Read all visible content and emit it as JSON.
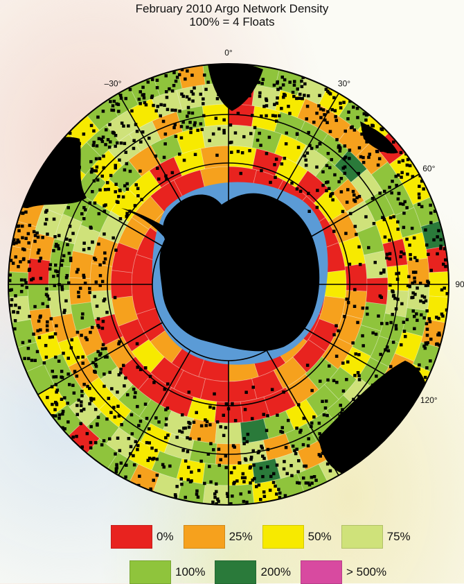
{
  "title": "February 2010 Argo Network Density",
  "subtitle": "100% = 4 Floats",
  "longitude_labels": [
    {
      "text": "0°",
      "lon": 0
    },
    {
      "text": "30°",
      "lon": 30
    },
    {
      "text": "60°",
      "lon": 60
    },
    {
      "text": "90",
      "lon": 90
    },
    {
      "text": "120°",
      "lon": 120
    },
    {
      "text": "–30°",
      "lon": -30
    }
  ],
  "legend": [
    {
      "label": "0%",
      "color": "#e8231f"
    },
    {
      "label": "25%",
      "color": "#f6a11d"
    },
    {
      "label": "50%",
      "color": "#f7ea00"
    },
    {
      "label": "75%",
      "color": "#cfe27a"
    },
    {
      "label": "100%",
      "color": "#8fc43c"
    },
    {
      "label": "200%",
      "color": "#2a7a3a"
    },
    {
      "label": "> 500%",
      "color": "#d84aa0"
    }
  ],
  "colors": {
    "land": "#000000",
    "ice_shelf": "#4f8fd0",
    "grid_line": "#000000",
    "float_marker": "#000000"
  }
}
